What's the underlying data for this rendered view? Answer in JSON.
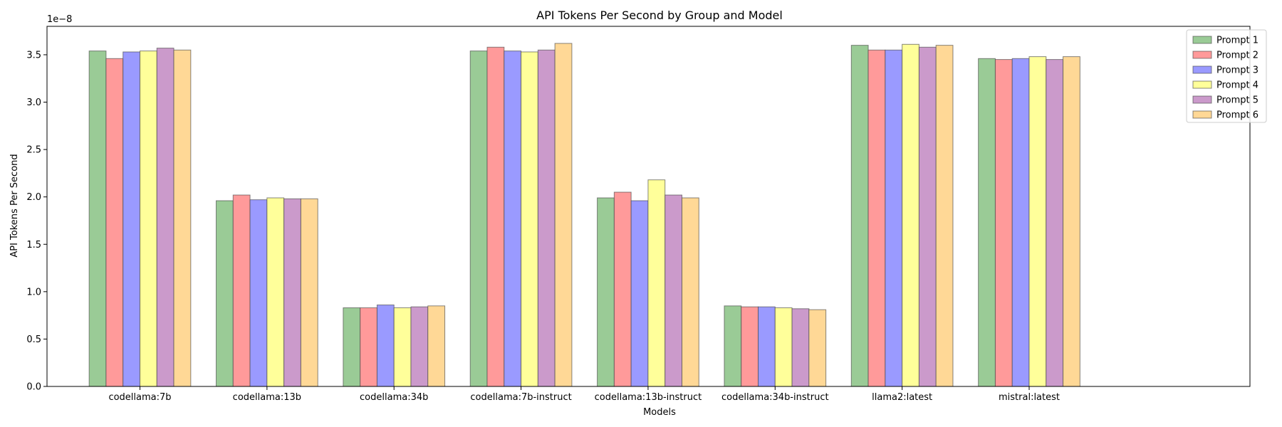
{
  "chart_data": {
    "type": "bar",
    "title": "API Tokens Per Second by Group and Model",
    "xlabel": "Models",
    "ylabel": "API Tokens Per Second",
    "offset_label": "1e−8",
    "ylim": [
      0,
      3.8
    ],
    "yticks": [
      "0.0",
      "0.5",
      "1.0",
      "1.5",
      "2.0",
      "2.5",
      "3.0",
      "3.5"
    ],
    "grid": false,
    "legend_position": "top-right",
    "categories": [
      "codellama:7b",
      "codellama:13b",
      "codellama:34b",
      "codellama:7b-instruct",
      "codellama:13b-instruct",
      "codellama:34b-instruct",
      "llama2:latest",
      "mistral:latest"
    ],
    "series": [
      {
        "name": "Prompt 1",
        "color": "#9acb96",
        "values": [
          3.54,
          1.96,
          0.83,
          3.54,
          1.99,
          0.85,
          3.6,
          3.46
        ]
      },
      {
        "name": "Prompt 2",
        "color": "#ff9a9a",
        "values": [
          3.46,
          2.02,
          0.83,
          3.58,
          2.05,
          0.84,
          3.55,
          3.45
        ]
      },
      {
        "name": "Prompt 3",
        "color": "#9a9aff",
        "values": [
          3.53,
          1.97,
          0.86,
          3.54,
          1.96,
          0.84,
          3.55,
          3.46
        ]
      },
      {
        "name": "Prompt 4",
        "color": "#ffff9a",
        "values": [
          3.54,
          1.99,
          0.83,
          3.53,
          2.18,
          0.83,
          3.61,
          3.48
        ]
      },
      {
        "name": "Prompt 5",
        "color": "#cb9acb",
        "values": [
          3.57,
          1.98,
          0.84,
          3.55,
          2.02,
          0.82,
          3.58,
          3.45
        ]
      },
      {
        "name": "Prompt 6",
        "color": "#ffd896",
        "values": [
          3.55,
          1.98,
          0.85,
          3.62,
          1.99,
          0.81,
          3.6,
          3.48
        ]
      }
    ]
  }
}
